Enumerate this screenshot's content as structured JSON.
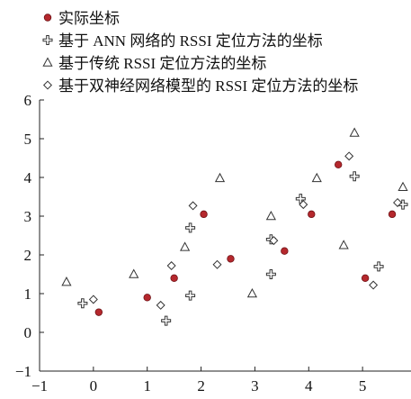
{
  "chart_data": {
    "type": "scatter",
    "xlim": [
      -1,
      5.9
    ],
    "ylim": [
      -1,
      6
    ],
    "x_ticks": [
      -1,
      0,
      1,
      2,
      3,
      4,
      5
    ],
    "y_ticks": [
      -1,
      0,
      1,
      2,
      3,
      4,
      5,
      6
    ],
    "grid": false,
    "legend_position": "top-left",
    "series": [
      {
        "name": "实际坐标",
        "marker": "filled-circle",
        "color": "#b5282d",
        "points": [
          [
            0.1,
            0.52
          ],
          [
            1.0,
            0.9
          ],
          [
            1.5,
            1.4
          ],
          [
            2.05,
            3.05
          ],
          [
            2.55,
            1.9
          ],
          [
            3.55,
            2.1
          ],
          [
            4.05,
            3.05
          ],
          [
            4.55,
            4.33
          ],
          [
            5.05,
            1.4
          ],
          [
            5.55,
            3.05
          ]
        ]
      },
      {
        "name": "基于 ANN 网络的 RSSI 定位方法的坐标",
        "marker": "cross",
        "color": "#333333",
        "points": [
          [
            -0.2,
            0.75
          ],
          [
            1.35,
            0.3
          ],
          [
            1.8,
            0.95
          ],
          [
            1.8,
            2.7
          ],
          [
            3.3,
            2.4
          ],
          [
            3.3,
            1.5
          ],
          [
            3.85,
            3.45
          ],
          [
            4.85,
            4.03
          ],
          [
            5.3,
            1.7
          ],
          [
            5.75,
            3.3
          ]
        ]
      },
      {
        "name": "基于传统 RSSI 定位方法的坐标",
        "marker": "triangle",
        "color": "#333333",
        "points": [
          [
            -0.5,
            1.3
          ],
          [
            0.75,
            1.5
          ],
          [
            1.7,
            2.2
          ],
          [
            2.35,
            3.98
          ],
          [
            2.95,
            1.0
          ],
          [
            3.3,
            3.0
          ],
          [
            4.15,
            3.98
          ],
          [
            4.65,
            2.25
          ],
          [
            4.85,
            5.15
          ],
          [
            5.75,
            3.75
          ]
        ]
      },
      {
        "name": "基于双神经网络模型的 RSSI 定位方法的坐标",
        "marker": "diamond",
        "color": "#333333",
        "points": [
          [
            0.0,
            0.85
          ],
          [
            1.25,
            0.7
          ],
          [
            1.45,
            1.72
          ],
          [
            1.85,
            3.27
          ],
          [
            2.3,
            1.75
          ],
          [
            3.35,
            2.37
          ],
          [
            3.9,
            3.3
          ],
          [
            4.75,
            4.55
          ],
          [
            5.2,
            1.22
          ],
          [
            5.65,
            3.35
          ]
        ]
      }
    ]
  }
}
